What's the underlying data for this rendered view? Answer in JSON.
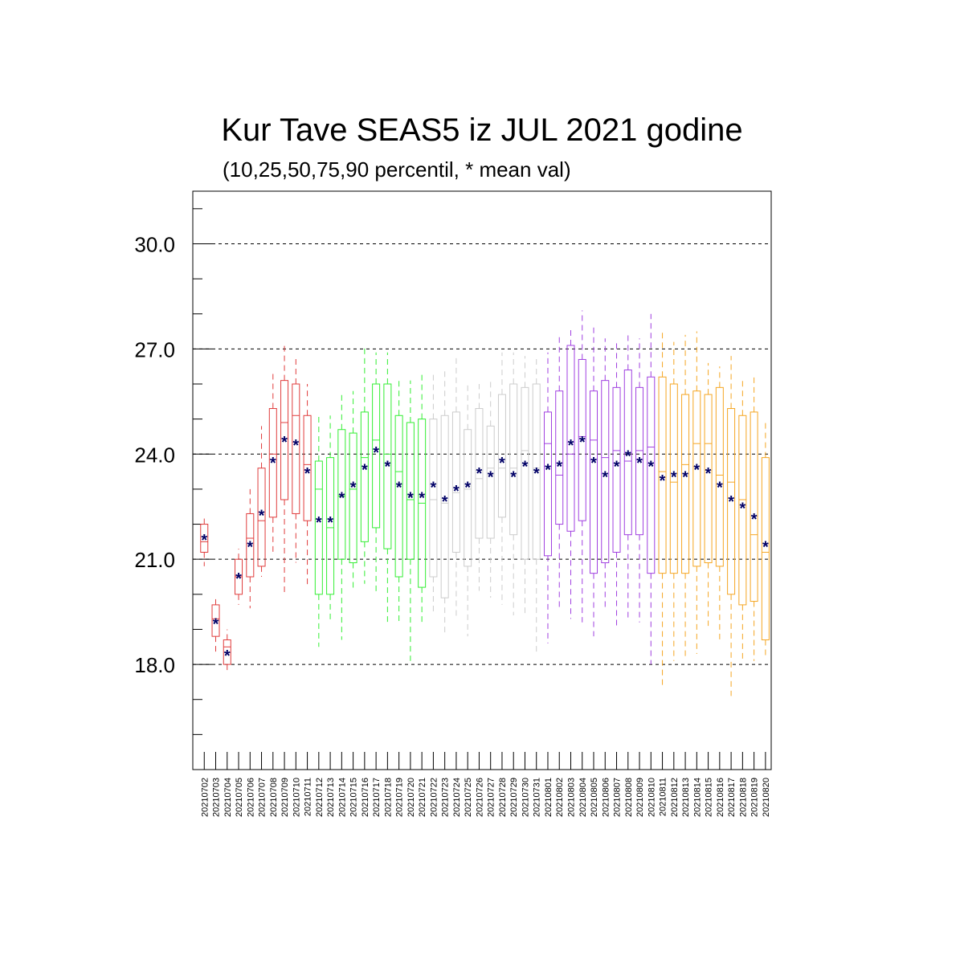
{
  "chart_data": {
    "type": "box",
    "title": "Kur Tave SEAS5 iz JUL 2021 godine",
    "subtitle": "(10,25,50,75,90 percentil, * mean val)",
    "xlabel": "",
    "ylabel": "",
    "ylim": [
      15.0,
      31.5
    ],
    "yticks": [
      "18.0",
      "21.0",
      "24.0",
      "27.0",
      "30.0"
    ],
    "grid_y_dashed": [
      18.0,
      21.0,
      24.0,
      27.0,
      30.0
    ],
    "colors": {
      "red": "#e03c3c",
      "green": "#33ee33",
      "gray": "#cccccc",
      "purple": "#a040e0",
      "orange": "#f5a623",
      "mean_marker": "#000066",
      "axis": "#000000"
    },
    "categories": [
      "20210702",
      "20210703",
      "20210704",
      "20210705",
      "20210706",
      "20210707",
      "20210708",
      "20210709",
      "20210710",
      "20210711",
      "20210712",
      "20210713",
      "20210714",
      "20210715",
      "20210716",
      "20210717",
      "20210718",
      "20210719",
      "20210720",
      "20210721",
      "20210722",
      "20210723",
      "20210724",
      "20210725",
      "20210726",
      "20210727",
      "20210728",
      "20210729",
      "20210730",
      "20210731",
      "20210801",
      "20210802",
      "20210803",
      "20210804",
      "20210805",
      "20210806",
      "20210807",
      "20210808",
      "20210809",
      "20210810",
      "20210811",
      "20210812",
      "20210813",
      "20210814",
      "20210815",
      "20210816",
      "20210817",
      "20210818",
      "20210819",
      "20210820"
    ],
    "color_groups": [
      "red",
      "red",
      "red",
      "red",
      "red",
      "red",
      "red",
      "red",
      "red",
      "red",
      "green",
      "green",
      "green",
      "green",
      "green",
      "green",
      "green",
      "green",
      "green",
      "green",
      "gray",
      "gray",
      "gray",
      "gray",
      "gray",
      "gray",
      "gray",
      "gray",
      "gray",
      "gray",
      "purple",
      "purple",
      "purple",
      "purple",
      "purple",
      "purple",
      "purple",
      "purple",
      "purple",
      "purple",
      "orange",
      "orange",
      "orange",
      "orange",
      "orange",
      "orange",
      "orange",
      "orange",
      "orange",
      "orange"
    ],
    "p10": [
      20.8,
      18.3,
      17.8,
      19.7,
      19.6,
      20.5,
      21.2,
      20.0,
      20.9,
      20.2,
      18.5,
      19.2,
      18.7,
      20.1,
      20.3,
      20.0,
      19.2,
      19.2,
      18.1,
      19.2,
      19.4,
      18.8,
      19.3,
      18.8,
      20.1,
      19.9,
      19.7,
      19.4,
      19.4,
      18.3,
      18.6,
      19.6,
      19.3,
      19.2,
      18.8,
      19.6,
      19.0,
      19.3,
      19.2,
      18.0,
      17.3,
      18.1,
      18.2,
      18.3,
      19.1,
      18.6,
      17.1,
      18.1,
      18.1,
      18.2
    ],
    "p25": [
      21.2,
      18.8,
      18.0,
      20.0,
      20.5,
      20.8,
      22.2,
      22.7,
      22.3,
      22.1,
      20.0,
      20.0,
      21.0,
      20.9,
      21.5,
      21.9,
      21.3,
      20.5,
      21.0,
      20.2,
      20.5,
      19.9,
      21.2,
      20.8,
      21.6,
      21.6,
      22.2,
      21.7,
      21.0,
      21.0,
      21.1,
      22.0,
      21.8,
      22.1,
      20.6,
      20.9,
      21.2,
      21.7,
      21.7,
      20.6,
      20.6,
      20.6,
      20.6,
      20.8,
      20.9,
      20.8,
      20.0,
      19.7,
      19.8,
      18.7
    ],
    "p50": [
      21.5,
      19.3,
      18.5,
      20.5,
      21.6,
      22.1,
      24.0,
      24.9,
      25.1,
      23.7,
      23.0,
      21.9,
      22.8,
      23.0,
      23.9,
      24.4,
      24.0,
      23.5,
      22.7,
      22.6,
      22.7,
      22.6,
      22.9,
      23.0,
      23.3,
      23.6,
      23.6,
      23.6,
      24.1,
      23.6,
      24.3,
      23.4,
      24.0,
      24.5,
      24.4,
      23.9,
      24.1,
      23.8,
      24.1,
      24.2,
      23.5,
      23.2,
      23.7,
      24.3,
      24.3,
      23.4,
      23.2,
      22.7,
      21.7,
      21.2
    ],
    "p75": [
      22.0,
      19.7,
      18.7,
      21.0,
      22.3,
      23.6,
      25.3,
      26.1,
      26.0,
      25.1,
      23.8,
      23.9,
      24.7,
      24.6,
      25.2,
      26.0,
      26.0,
      25.1,
      24.9,
      25.0,
      25.0,
      25.1,
      25.2,
      24.7,
      25.3,
      24.8,
      25.7,
      26.0,
      25.9,
      26.0,
      25.2,
      25.8,
      27.1,
      26.7,
      25.8,
      26.1,
      25.9,
      26.4,
      25.9,
      26.2,
      26.2,
      26.0,
      25.7,
      25.8,
      25.7,
      25.9,
      25.3,
      25.1,
      25.2,
      23.9
    ],
    "p90": [
      22.2,
      19.9,
      19.0,
      21.3,
      23.0,
      24.8,
      26.3,
      27.1,
      26.8,
      26.0,
      25.1,
      25.1,
      25.7,
      25.8,
      27.1,
      26.9,
      26.9,
      26.1,
      26.1,
      26.3,
      26.3,
      26.4,
      26.8,
      26.0,
      26.0,
      26.1,
      26.9,
      26.9,
      26.8,
      26.8,
      26.9,
      27.4,
      27.6,
      28.1,
      27.7,
      27.3,
      27.2,
      27.4,
      27.3,
      28.0,
      27.5,
      27.2,
      27.4,
      27.5,
      26.6,
      26.5,
      26.8,
      26.2,
      26.3,
      25.0
    ],
    "mean": [
      21.6,
      19.2,
      18.3,
      20.5,
      21.4,
      22.3,
      23.8,
      24.4,
      24.3,
      23.5,
      22.1,
      22.1,
      22.8,
      23.1,
      23.6,
      24.1,
      23.7,
      23.1,
      22.8,
      22.8,
      23.1,
      22.7,
      23.0,
      23.1,
      23.5,
      23.4,
      23.8,
      23.4,
      23.7,
      23.5,
      23.6,
      23.7,
      24.3,
      24.4,
      23.8,
      23.4,
      23.7,
      24.0,
      23.8,
      23.7,
      23.3,
      23.4,
      23.4,
      23.6,
      23.5,
      23.1,
      22.7,
      22.5,
      22.2,
      21.4
    ]
  }
}
